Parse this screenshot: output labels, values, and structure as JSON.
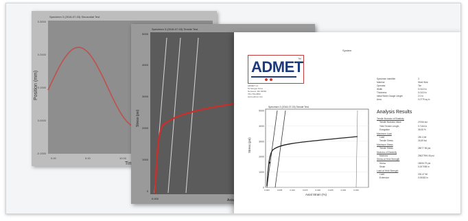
{
  "panel1": {
    "title": "Specimen 3 (2016-07-03) Sinusoidal Test",
    "ylabel": "Position (mm)",
    "xlabel": "Time (sec)",
    "yticks": [
      "0.3000",
      "0.2000",
      "0.1000",
      "0.0000",
      "-0.1000"
    ],
    "xticks": [
      "0.00",
      "5.00",
      "10.00"
    ],
    "plot_bg": "#8e8e8e",
    "curve_color": "#c0504d"
  },
  "panel2": {
    "title": "Specimen 3 (2016-07-03) Tensile Test",
    "ylabel": "Stress (psi)",
    "xlabel": "Axial Strain",
    "yticks": [
      "5000",
      "4000",
      "3000",
      "2000",
      "1000",
      "0"
    ],
    "xtick_left": "0.000",
    "plot_bg": "#5b5b5b",
    "curve_color": "#c9302c"
  },
  "panel3": {
    "header": "System",
    "logo": {
      "text": "ADMET",
      "tm": "™"
    },
    "address_lines": [
      "ADMET Inc.",
      "51 Morgan Drive",
      "Norwood, MA 02062",
      "781-769-0850",
      "www.admet.com"
    ],
    "info_lines": [
      {
        "label": "Specimen Identifier",
        "value": "3"
      },
      {
        "label": "Material",
        "value": "Steel Wire"
      },
      {
        "label": "Operator",
        "value": "Tim"
      },
      {
        "label": "Width",
        "value": "0.0110 in"
      },
      {
        "label": "Thickness",
        "value": "0.0110 in"
      },
      {
        "label": "Initial Strain Gauge Length",
        "value": "2.0 in"
      },
      {
        "label": "Area",
        "value": "0.0779 sq in"
      }
    ],
    "analysis_heading": "Analysis Results",
    "results": [
      {
        "label": "Tensile Modulus of Elasticity",
        "value": ""
      },
      {
        "label": "Tensile Modulus Value",
        "value": "27006 ksi"
      },
      {
        "label": "Yield Tensile Length",
        "value": "0.7164 in"
      },
      {
        "label": "Elongation",
        "value": "35.08 %"
      },
      {
        "label": "Maximum Load",
        "value": ""
      },
      {
        "label": "Load",
        "value": "250.3 lbf"
      },
      {
        "label": "Tensile Stress",
        "value": "26.59 ksi"
      },
      {
        "label": "Maximum Stress",
        "value": ""
      },
      {
        "label": "Tensile Stress",
        "value": "28077.96 psi"
      },
      {
        "label": "Modulus of Elasticity",
        "value": ""
      },
      {
        "label": "Modulus",
        "value": "25627994.06 psi"
      },
      {
        "label": "Stress at Yield Strength",
        "value": ""
      },
      {
        "label": "Stress",
        "value": "18006.75 psi"
      },
      {
        "label": "Strain",
        "value": "0.007098 in"
      },
      {
        "label": "Load at Yield Strength",
        "value": ""
      },
      {
        "label": "Load",
        "value": "200.47 lbf"
      },
      {
        "label": "Extension",
        "value": "0.00082 in"
      }
    ],
    "chart_title": "Specimen 3 (2016-07-03) Tensile Test",
    "chart_ylabel": "Stress (psi)",
    "chart_xlabel": "Axial Strain (%)",
    "chart_yticks": [
      "5000",
      "4000",
      "3000",
      "2000",
      "1000",
      "0"
    ],
    "chart_xticks": [
      "0.000",
      "0.005",
      "0.010",
      "0.015",
      "0.020",
      "0.025",
      "0.030",
      "0.035"
    ],
    "curve_color": "#222222"
  }
}
